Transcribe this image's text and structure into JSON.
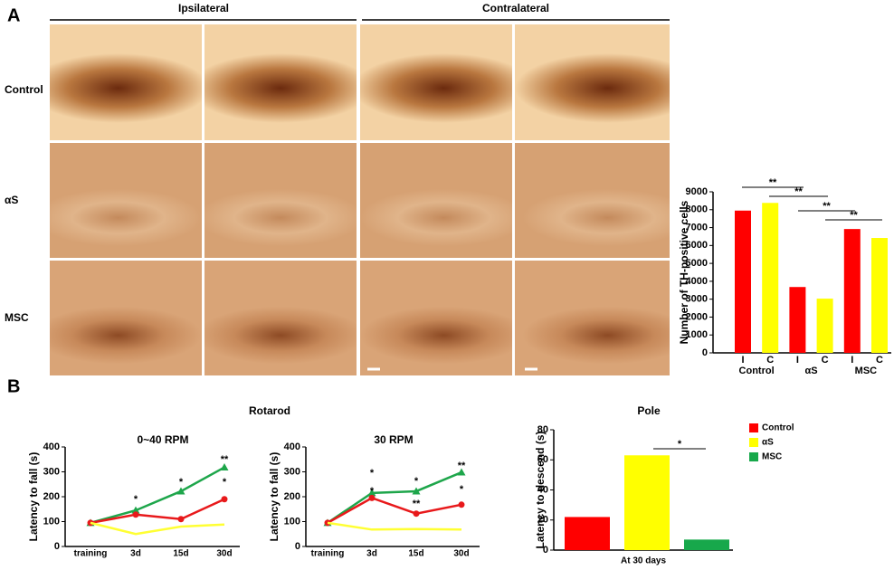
{
  "panel_a": {
    "label": "A",
    "columns": [
      "Ipsilateral",
      "Contralateral"
    ],
    "rows": [
      "Control",
      "αS",
      "MSC"
    ]
  },
  "panel_b": {
    "label": "B",
    "group_title": "Rotarod"
  },
  "chart_data": [
    {
      "type": "bar",
      "y_label": "Number of TH-positive cells",
      "categories": [
        "I",
        "C",
        "I",
        "C",
        "I",
        "C"
      ],
      "groups": [
        "Control",
        "αS",
        "MSC"
      ],
      "values": [
        7950,
        8380,
        3680,
        3030,
        6920,
        6420
      ],
      "colors": [
        "#ff0000",
        "#ffff00",
        "#ff0000",
        "#ffff00",
        "#ff0000",
        "#ffff00"
      ],
      "ylim": [
        0,
        9000
      ],
      "yticks": [
        0,
        1000,
        2000,
        3000,
        4000,
        5000,
        6000,
        7000,
        8000,
        9000
      ],
      "annotations": [
        "**",
        "**",
        "**",
        "**"
      ]
    },
    {
      "type": "line",
      "title": "0~40 RPM",
      "y_label": "Latency to fall (s)",
      "categories": [
        "training",
        "3d",
        "15d",
        "30d"
      ],
      "series": [
        {
          "color": "#1ea64b",
          "marker": "triangle",
          "values": [
            95,
            145,
            222,
            318
          ]
        },
        {
          "color": "#e8191b",
          "marker": "circle",
          "values": [
            95,
            128,
            110,
            190
          ]
        },
        {
          "color": "#ffff33",
          "values": [
            95,
            50,
            80,
            88
          ]
        }
      ],
      "ylim": [
        0,
        400
      ],
      "yticks": [
        0,
        100,
        200,
        300,
        400
      ],
      "annotations": [
        "*",
        "*",
        "**",
        "*"
      ]
    },
    {
      "type": "line",
      "title": "30 RPM",
      "y_label": "Latency to fall (s)",
      "categories": [
        "training",
        "3d",
        "15d",
        "30d"
      ],
      "series": [
        {
          "color": "#1ea64b",
          "marker": "triangle",
          "values": [
            95,
            215,
            222,
            298
          ]
        },
        {
          "color": "#e8191b",
          "marker": "circle",
          "values": [
            95,
            195,
            132,
            168
          ]
        },
        {
          "color": "#ffff33",
          "values": [
            95,
            68,
            70,
            68
          ]
        }
      ],
      "ylim": [
        0,
        400
      ],
      "yticks": [
        0,
        100,
        200,
        300,
        400
      ],
      "annotations": [
        "*",
        "*",
        "*",
        "**",
        "**",
        "*"
      ]
    },
    {
      "type": "bar",
      "title": "Pole",
      "y_label": "Latency to descend (s)",
      "categories": [
        "At 30 days"
      ],
      "series": [
        {
          "name": "Control",
          "color": "#ff0000",
          "values": [
            22
          ]
        },
        {
          "name": "αS",
          "color": "#ffff00",
          "values": [
            63
          ]
        },
        {
          "name": "MSC",
          "color": "#17a84b",
          "values": [
            7
          ]
        }
      ],
      "ylim": [
        0,
        80
      ],
      "yticks": [
        0,
        20,
        40,
        60,
        80
      ],
      "annotations": [
        "*"
      ]
    }
  ]
}
